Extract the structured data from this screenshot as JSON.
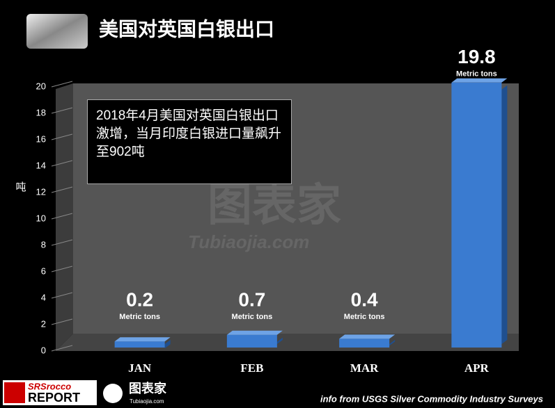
{
  "chart_data": {
    "type": "bar",
    "title": "美国对英国白银出口",
    "y_label": "吨",
    "categories": [
      "JAN",
      "FEB",
      "MAR",
      "APR"
    ],
    "values": [
      0.2,
      0.7,
      0.4,
      19.8
    ],
    "unit_label": "Metric tons",
    "color": "#3a7bd0",
    "ylim": [
      0,
      20
    ],
    "yticks": [
      0,
      2,
      4,
      6,
      8,
      10,
      12,
      14,
      16,
      18,
      20
    ],
    "annotation": "2018年4月美国对英国白银出口激增，当月印度白银进口量飙升至902吨",
    "source": "info from USGS Silver Commodity Industry Surveys"
  },
  "branding": {
    "report_top": "SRSrocco",
    "report_bottom": "REPORT",
    "watermark": "图表家",
    "watermark_url": "Tubiaojia.com"
  }
}
